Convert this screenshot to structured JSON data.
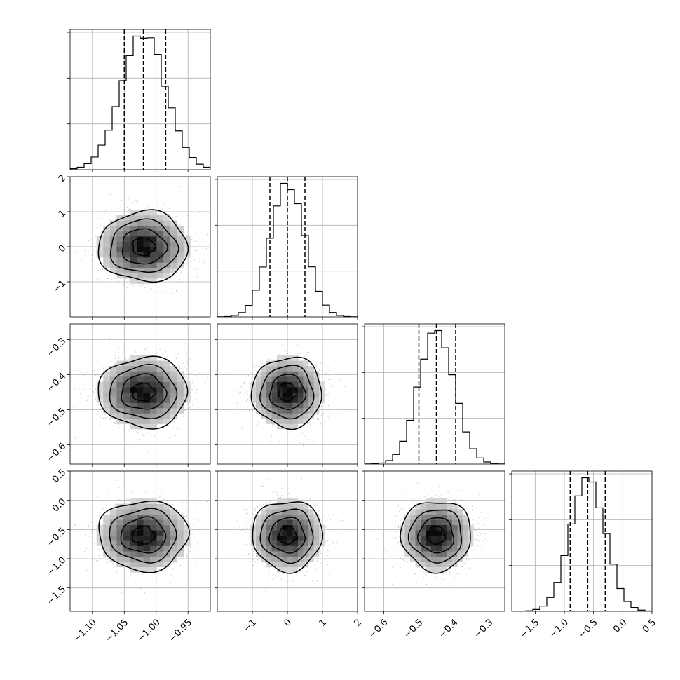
{
  "chart_data": {
    "type": "corner",
    "dimensions": [
      {
        "index": 0,
        "range": [
          -1.135,
          -0.915
        ],
        "mean": -1.02,
        "std": 0.035,
        "quantiles": [
          -1.05,
          -1.02,
          -0.985
        ],
        "ticks": [
          -1.1,
          -1.05,
          -1.0,
          -0.95
        ],
        "tick_labels": [
          "−1.10",
          "−1.05",
          "−1.00",
          "−0.95"
        ]
      },
      {
        "index": 1,
        "range": [
          -2.0,
          2.0
        ],
        "mean": 0.0,
        "std": 0.5,
        "quantiles": [
          -0.5,
          0.0,
          0.5
        ],
        "ticks": [
          -1,
          0,
          1,
          2
        ],
        "tick_labels": [
          "−1",
          "0",
          "1",
          "2"
        ],
        "y_ticks": [
          -1,
          0,
          1,
          2
        ],
        "y_tick_labels": [
          "−1",
          "0",
          "1",
          "2"
        ]
      },
      {
        "index": 2,
        "range": [
          -0.655,
          -0.255
        ],
        "mean": -0.45,
        "std": 0.05,
        "quantiles": [
          -0.5,
          -0.45,
          -0.395
        ],
        "ticks": [
          -0.6,
          -0.5,
          -0.4,
          -0.3
        ],
        "tick_labels": [
          "−0.6",
          "−0.5",
          "−0.4",
          "−0.3"
        ],
        "y_ticks": [
          -0.6,
          -0.5,
          -0.4,
          -0.3
        ],
        "y_tick_labels": [
          "−0.6",
          "−0.5",
          "−0.4",
          "−0.3"
        ]
      },
      {
        "index": 3,
        "range": [
          -1.9,
          0.5
        ],
        "mean": -0.6,
        "std": 0.3,
        "quantiles": [
          -0.9,
          -0.6,
          -0.3
        ],
        "ticks": [
          -1.5,
          -1.0,
          -0.5,
          0.0,
          0.5
        ],
        "tick_labels": [
          "−1.5",
          "−1.0",
          "−0.5",
          "0.0",
          "0.5"
        ],
        "y_ticks": [
          -1.5,
          -1.0,
          -0.5,
          0.0,
          0.5
        ],
        "y_tick_labels": [
          "−1.5",
          "−1.0",
          "−0.5",
          "0.0",
          "0.5"
        ]
      }
    ],
    "histogram_bins": 20,
    "contour_levels": [
      0.5,
      1.0,
      1.5,
      2.0
    ],
    "grid": true,
    "quantile_lines": "dashed",
    "colors": {
      "points": "#9a9a9a",
      "density": "#000000",
      "lines": "#000000"
    }
  }
}
